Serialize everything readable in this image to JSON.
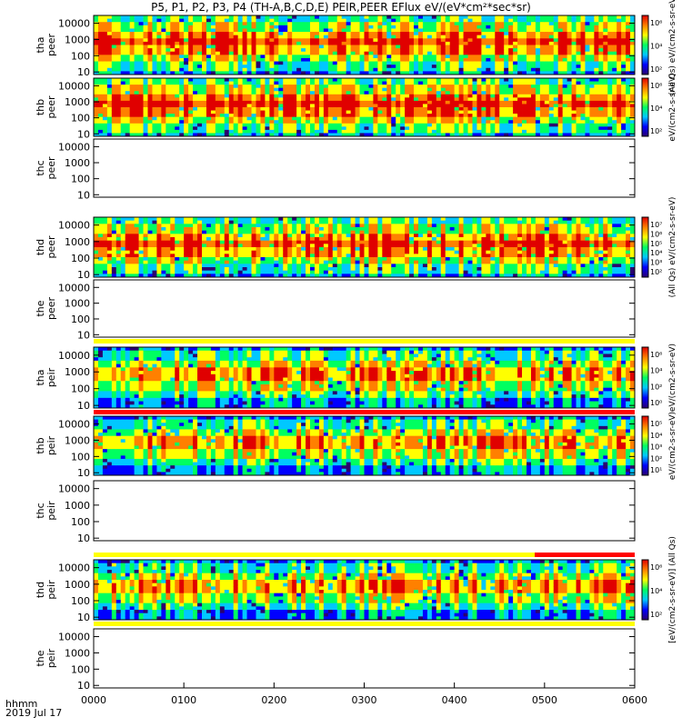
{
  "header": {
    "title": "P5, P1, P2, P3, P4 (TH-A,B,C,D,E) PEIR,PEER EFlux eV/(eV*cm²*sec*sr)"
  },
  "footer": {
    "time_label": "hhmm",
    "date_label": "2019 Jul 17"
  },
  "colors": {
    "spectrogram_scale": [
      "#2a0070",
      "#0000ff",
      "#00c8ff",
      "#00ff60",
      "#ffff00",
      "#ff8000",
      "#e00000"
    ],
    "flag_yellow": "#ffff00",
    "flag_red": "#ff0000"
  },
  "chart_data": {
    "type": "heatmap",
    "x_tick_labels": [
      "0000",
      "0100",
      "0200",
      "0300",
      "0400",
      "0500",
      "0600"
    ],
    "x_range_hours": [
      0,
      6
    ],
    "y_scale": "log",
    "panels": [
      {
        "id": "tha-peer",
        "ylabel_top": "tha",
        "ylabel_bottom": "peer",
        "yticks": [
          "10000",
          "1000",
          "100",
          "10"
        ],
        "ylim": [
          7,
          30000
        ],
        "has_data": true,
        "colorbar_ticks": [
          "10⁶",
          "10⁴",
          "10²"
        ],
        "colorbar_label": "(All Qs) eV/(cm2-s-sr-eV)"
      },
      {
        "id": "thb-peer",
        "ylabel_top": "thb",
        "ylabel_bottom": "peer",
        "yticks": [
          "10000",
          "1000",
          "100",
          "10"
        ],
        "ylim": [
          7,
          30000
        ],
        "has_data": true,
        "colorbar_ticks": [
          "10⁶",
          "10⁴",
          "10²"
        ],
        "colorbar_label": "eV/(cm2-s-sr-eV)"
      },
      {
        "id": "thc-peer",
        "ylabel_top": "thc",
        "ylabel_bottom": "peer",
        "yticks": [
          "10000",
          "1000",
          "100",
          "10"
        ],
        "ylim": [
          7,
          30000
        ],
        "has_data": false
      },
      {
        "id": "thd-peer",
        "ylabel_top": "thd",
        "ylabel_bottom": "peer",
        "yticks": [
          "10000",
          "1000",
          "100",
          "10"
        ],
        "ylim": [
          7,
          30000
        ],
        "has_data": true,
        "colorbar_ticks": [
          "10⁷",
          "10⁶",
          "10⁵",
          "10⁴",
          "10³",
          "10²"
        ],
        "colorbar_label": "(All Qs) eV/(cm2-s-sr-eV)"
      },
      {
        "id": "the-peer",
        "ylabel_top": "the",
        "ylabel_bottom": "peer",
        "yticks": [
          "10000",
          "1000",
          "100",
          "10"
        ],
        "ylim": [
          7,
          30000
        ],
        "has_data": false
      },
      {
        "id": "tha-peir",
        "ylabel_top": "tha",
        "ylabel_bottom": "peir",
        "yticks": [
          "10000",
          "1000",
          "100",
          "10"
        ],
        "ylim": [
          7,
          30000
        ],
        "has_data": true,
        "colorbar_ticks": [
          "10⁶",
          "10⁴",
          "10²",
          "10⁰"
        ],
        "colorbar_label": "eV/(cm2-s-sr-eV)"
      },
      {
        "id": "thb-peir",
        "ylabel_top": "thb",
        "ylabel_bottom": "peir",
        "yticks": [
          "10000",
          "1000",
          "100",
          "10"
        ],
        "ylim": [
          7,
          30000
        ],
        "has_data": true,
        "colorbar_ticks": [
          "10⁵",
          "10⁴",
          "10³",
          "10²",
          "10¹"
        ],
        "colorbar_label": "eV/(cm2-s-sr-eV)"
      },
      {
        "id": "thc-peir",
        "ylabel_top": "thc",
        "ylabel_bottom": "peir",
        "yticks": [
          "10000",
          "1000",
          "100",
          "10"
        ],
        "ylim": [
          7,
          30000
        ],
        "has_data": false
      },
      {
        "id": "thd-peir",
        "ylabel_top": "thd",
        "ylabel_bottom": "peir",
        "yticks": [
          "10000",
          "1000",
          "100",
          "10"
        ],
        "ylim": [
          7,
          30000
        ],
        "has_data": true,
        "colorbar_ticks": [
          "10⁶",
          "10⁴",
          "10²"
        ],
        "colorbar_label": "[eV/(cm2-s-sr-eV)] (All Qs)"
      },
      {
        "id": "the-peir",
        "ylabel_top": "the",
        "ylabel_bottom": "peir",
        "yticks": [
          "10000",
          "1000",
          "100",
          "10"
        ],
        "ylim": [
          7,
          30000
        ],
        "has_data": false
      }
    ]
  }
}
